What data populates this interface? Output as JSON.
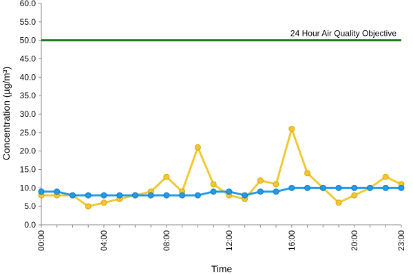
{
  "chart_data": {
    "type": "line",
    "xlabel": "Time",
    "ylabel": "Concentration (µg/m³)",
    "ylim": [
      0,
      60
    ],
    "ytick_step": 5,
    "x_tick_labels": [
      "00:00",
      "04:00",
      "08:00",
      "12:00",
      "16:00",
      "20:00",
      "23:00"
    ],
    "x_tick_hours": [
      0,
      4,
      8,
      12,
      16,
      20,
      23
    ],
    "grid": false,
    "x": [
      0,
      1,
      2,
      3,
      4,
      5,
      6,
      7,
      8,
      9,
      10,
      11,
      12,
      13,
      14,
      15,
      16,
      17,
      18,
      19,
      20,
      21,
      22,
      23
    ],
    "series": [
      {
        "color": "#f2c832",
        "values": [
          8,
          8,
          8,
          5,
          6,
          7,
          8,
          9,
          13,
          9,
          21,
          11,
          8,
          7,
          12,
          11,
          26,
          14,
          10,
          6,
          8,
          10,
          13,
          11
        ]
      },
      {
        "color": "#1f9be8",
        "values": [
          9,
          9,
          8,
          8,
          8,
          8,
          8,
          8,
          8,
          8,
          8,
          9,
          9,
          8,
          9,
          9,
          10,
          10,
          10,
          10,
          10,
          10,
          10,
          10
        ]
      }
    ],
    "reference_line": {
      "label": "24 Hour Air Quality Objective",
      "value": 50,
      "color": "#1a7a1a"
    }
  }
}
